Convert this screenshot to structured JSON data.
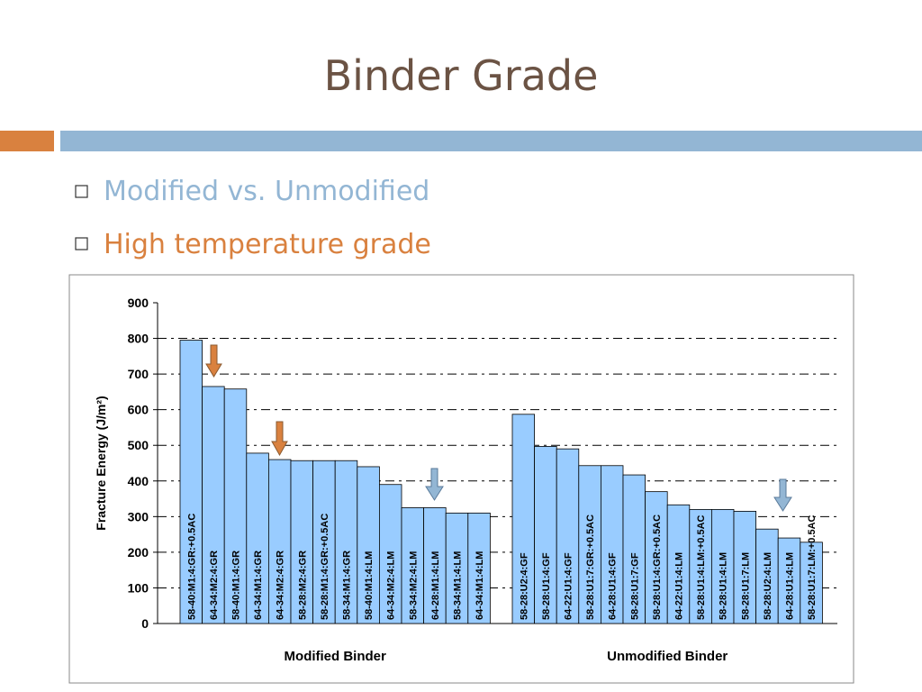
{
  "slide": {
    "title": "Binder Grade",
    "bullets": [
      "Modified vs. Unmodified",
      "High temperature grade"
    ]
  },
  "chart_data": {
    "type": "bar",
    "ylabel": "Fracture Energy (J/m²)",
    "group_labels": [
      "Modified Binder",
      "Unmodified Binder"
    ],
    "categories": [
      "58-40:M1:4:GR:+0.5AC",
      "64-34:M2:4:GR",
      "58-40:M1:4:GR",
      "64-34:M1:4:GR",
      "64-34:M2:4:GR",
      "58-28:M2:4:GR",
      "58-28:M1:4:GR:+0.5AC",
      "58-34:M1:4:GR",
      "58-40:M1:4:LM",
      "64-34:M2:4:LM",
      "58-34:M2:4:LM",
      "64-28:M1:4:LM",
      "58-34:M1:4:LM",
      "64-34:M1:4:LM",
      null,
      "58-28:U2:4:GF",
      "58-28:U1:4:GF",
      "64-22:U1:4:GF",
      "58-28:U1:7:GR:+0.5AC",
      "64-28:U1:4:GF",
      "58-28:U1:7:GF",
      "58-28:U1:4:GR:+0.5AC",
      "64-22:U1:4:LM",
      "58-28:U1:4:LM:+0.5AC",
      "58-28:U1:4:LM",
      "58-28:U1:7:LM",
      "58-28:U2:4:LM",
      "64-28:U1:4:LM",
      "58-28:U1:7:LM:+0.5AC"
    ],
    "values": [
      795,
      665,
      658,
      478,
      460,
      457,
      457,
      457,
      440,
      390,
      325,
      325,
      310,
      310,
      null,
      587,
      497,
      490,
      443,
      443,
      417,
      370,
      333,
      320,
      320,
      315,
      265,
      240,
      228
    ],
    "color": "#99ccff",
    "ylim": [
      0,
      900
    ],
    "yticks": [
      0,
      100,
      200,
      300,
      400,
      500,
      600,
      700,
      800,
      900
    ],
    "grid": true
  }
}
